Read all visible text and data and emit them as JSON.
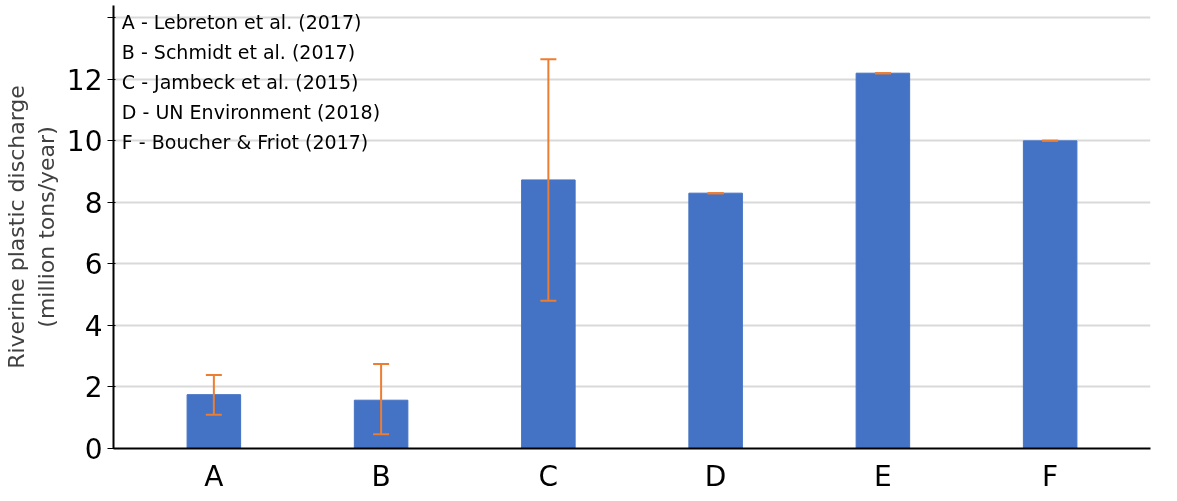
{
  "chart_data": {
    "type": "bar",
    "ylabel": "Riverine plastic discharge\n(million tons/year)",
    "categories": [
      "A",
      "B",
      "C",
      "D",
      "E",
      "F"
    ],
    "values": [
      1.75,
      1.57,
      8.73,
      8.3,
      12.2,
      10.0
    ],
    "errors": [
      [
        1.1,
        2.39
      ],
      [
        0.46,
        2.75
      ],
      [
        4.8,
        12.65
      ],
      0,
      0,
      0
    ],
    "color": "#4472c4",
    "ylim": [
      0,
      14.4
    ],
    "yticks": [
      0,
      2,
      4,
      6,
      8,
      10,
      12,
      {
        "value": 14,
        "label": null
      }
    ],
    "grid": "y",
    "annotations": [
      "A - Lebreton et al. (2017)",
      "B - Schmidt et al. (2017)",
      "C - Jambeck et al. (2015)",
      "D - UN Environment (2018)",
      "F - Boucher & Friot (2017)"
    ]
  }
}
